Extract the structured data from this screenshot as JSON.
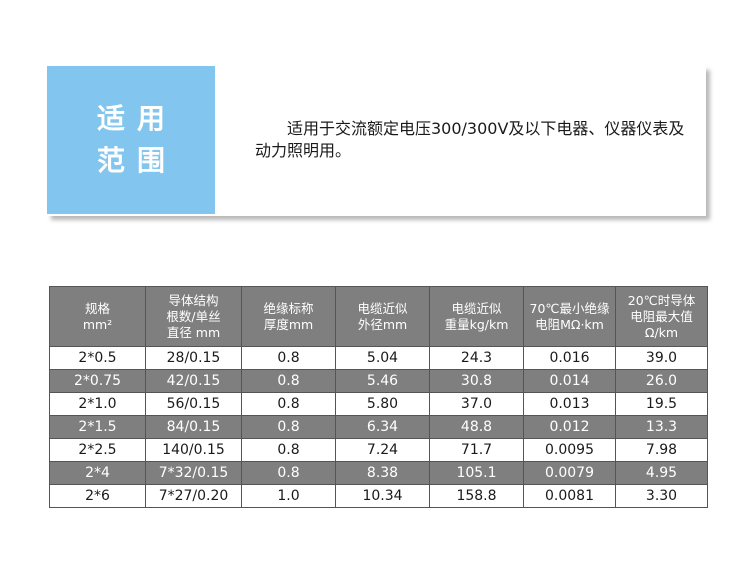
{
  "scope": {
    "label_line1": "适用",
    "label_line2": "范围",
    "text": "适用于交流额定电压300/300V及以下电器、仪器仪表及动力照明用。"
  },
  "colors": {
    "scope_label_bg": "#82c5ee",
    "table_header_bg": "#7f7f7f",
    "row_shaded_bg": "#7f7f7f",
    "row_plain_bg": "#ffffff"
  },
  "table": {
    "headers": [
      [
        "规格",
        "mm²"
      ],
      [
        "导体结构",
        "根数/单丝",
        "直径 mm"
      ],
      [
        "绝缘标称",
        "厚度mm"
      ],
      [
        "电缆近似",
        "外径mm"
      ],
      [
        "电缆近似",
        "重量kg/km"
      ],
      [
        "70℃最小绝缘",
        "电阻MΩ·km"
      ],
      [
        "20℃时导体",
        "电阻最大值",
        "Ω/km"
      ]
    ],
    "rows": [
      [
        "2*0.5",
        "28/0.15",
        "0.8",
        "5.04",
        "24.3",
        "0.016",
        "39.0"
      ],
      [
        "2*0.75",
        "42/0.15",
        "0.8",
        "5.46",
        "30.8",
        "0.014",
        "26.0"
      ],
      [
        "2*1.0",
        "56/0.15",
        "0.8",
        "5.80",
        "37.0",
        "0.013",
        "19.5"
      ],
      [
        "2*1.5",
        "84/0.15",
        "0.8",
        "6.34",
        "48.8",
        "0.012",
        "13.3"
      ],
      [
        "2*2.5",
        "140/0.15",
        "0.8",
        "7.24",
        "71.7",
        "0.0095",
        "7.98"
      ],
      [
        "2*4",
        "7*32/0.15",
        "0.8",
        "8.38",
        "105.1",
        "0.0079",
        "4.95"
      ],
      [
        "2*6",
        "7*27/0.20",
        "1.0",
        "10.34",
        "158.8",
        "0.0081",
        "3.30"
      ]
    ]
  }
}
